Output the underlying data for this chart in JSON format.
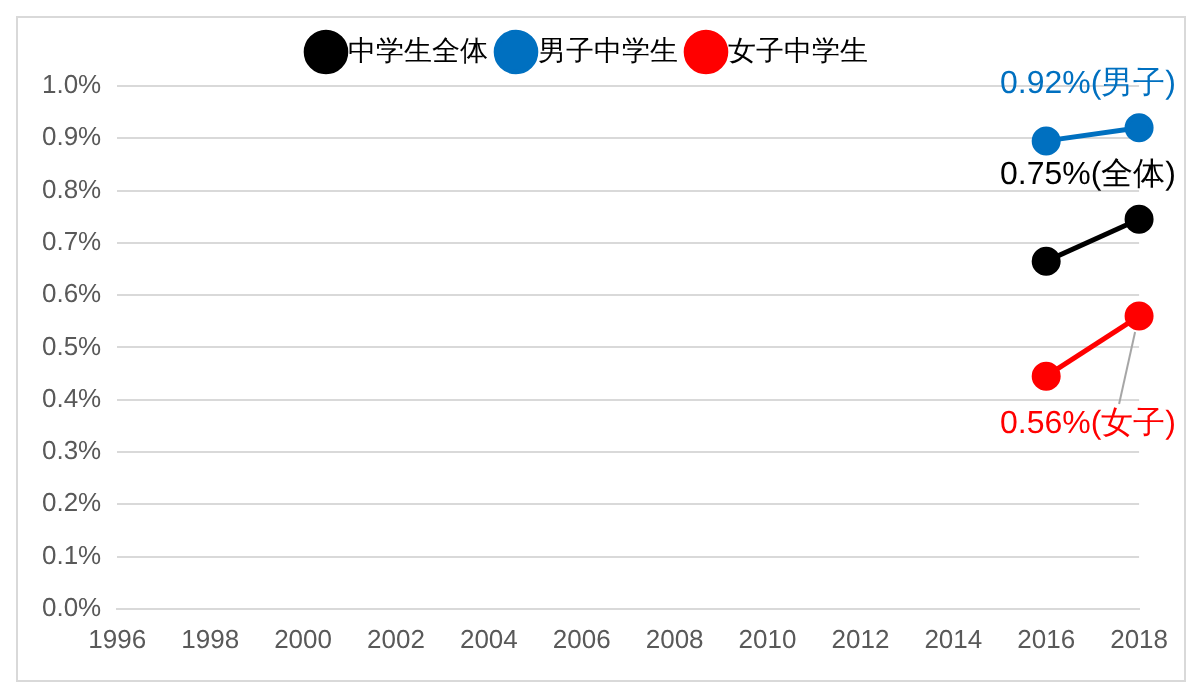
{
  "chart_data": {
    "type": "line",
    "categories": [
      "1996",
      "1998",
      "2000",
      "2002",
      "2004",
      "2006",
      "2008",
      "2010",
      "2012",
      "2014",
      "2016",
      "2018"
    ],
    "series": [
      {
        "name": "中学生全体",
        "color": "#000000",
        "values": [
          null,
          null,
          null,
          null,
          null,
          null,
          null,
          null,
          null,
          null,
          0.665,
          0.745
        ]
      },
      {
        "name": "男子中学生",
        "color": "#0070c0",
        "values": [
          null,
          null,
          null,
          null,
          null,
          null,
          null,
          null,
          null,
          null,
          0.895,
          0.92
        ]
      },
      {
        "name": "女子中学生",
        "color": "#ff0000",
        "values": [
          null,
          null,
          null,
          null,
          null,
          null,
          null,
          null,
          null,
          null,
          0.445,
          0.56
        ]
      }
    ],
    "ylim": [
      0,
      1.0
    ],
    "yticks": [
      {
        "value": 0,
        "label": "0.0%"
      },
      {
        "value": 0.1,
        "label": "0.1%"
      },
      {
        "value": 0.2,
        "label": "0.2%"
      },
      {
        "value": 0.3,
        "label": "0.3%"
      },
      {
        "value": 0.4,
        "label": "0.4%"
      },
      {
        "value": 0.5,
        "label": "0.5%"
      },
      {
        "value": 0.6,
        "label": "0.6%"
      },
      {
        "value": 0.7,
        "label": "0.7%"
      },
      {
        "value": 0.8,
        "label": "0.8%"
      },
      {
        "value": 0.9,
        "label": "0.9%"
      },
      {
        "value": 1.0,
        "label": "1.0%"
      }
    ],
    "annotations": [
      {
        "text": "0.75%(全体)",
        "x": "2018",
        "y": 0.745
      },
      {
        "text": "0.92%(男子)",
        "x": "2018",
        "y": 0.92
      },
      {
        "text": "0.56%(女子)",
        "x": "2018",
        "y": 0.56
      }
    ],
    "grid": "y",
    "legend": "top",
    "marker": "circle",
    "line_style": "solid"
  }
}
